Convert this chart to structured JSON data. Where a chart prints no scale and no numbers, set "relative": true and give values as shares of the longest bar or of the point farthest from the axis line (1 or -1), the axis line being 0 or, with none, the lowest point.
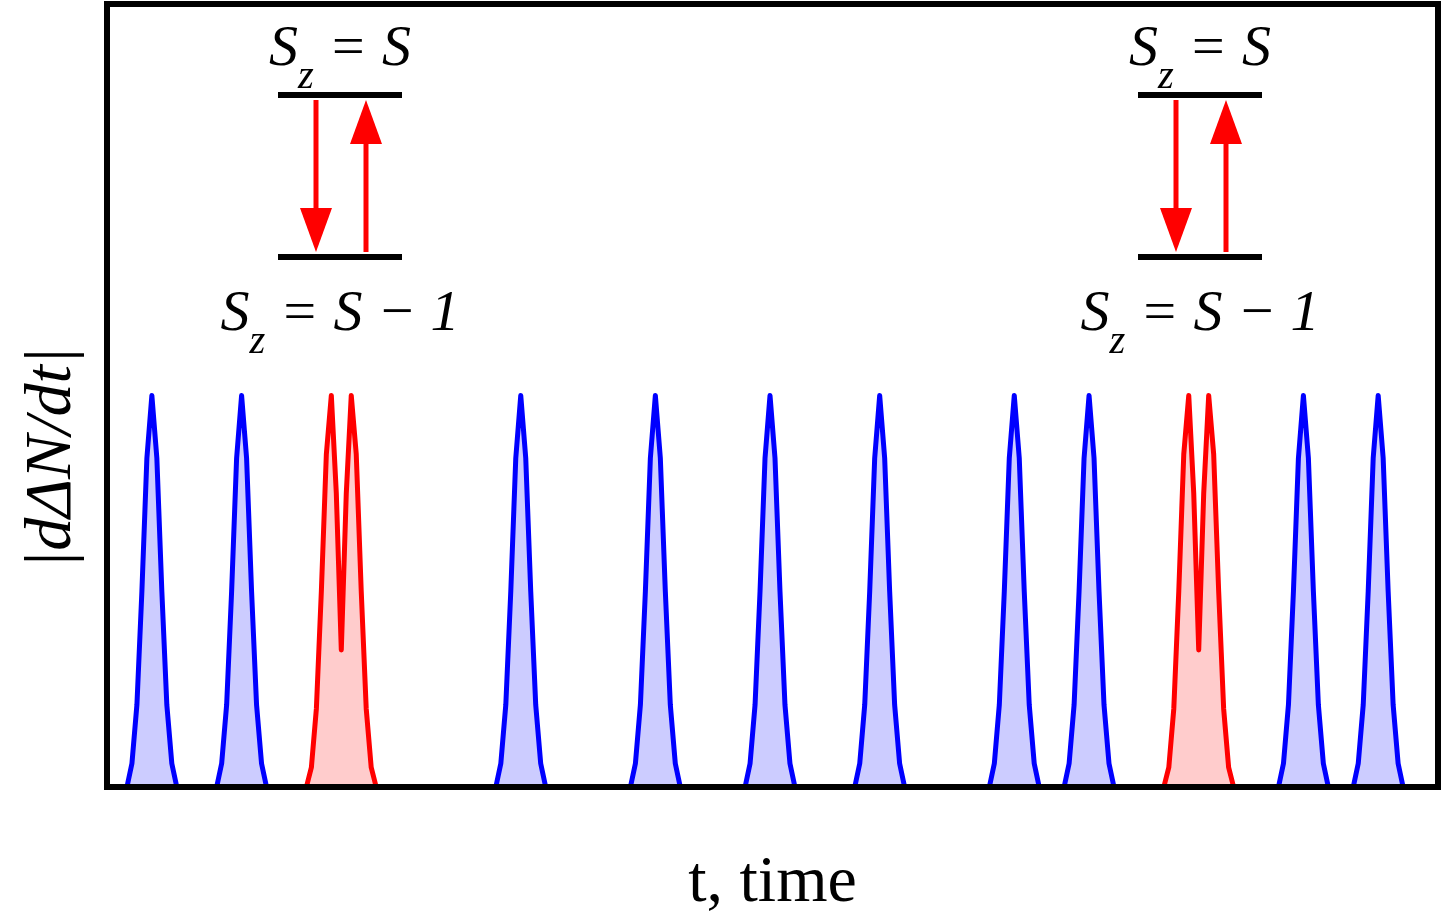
{
  "chart_data": {
    "type": "area",
    "relative": true,
    "xlabel": "t, time",
    "ylabel": "|dΔN/dt|",
    "annotations": [
      "S$_{z}$ = S",
      "S$_{z}$ = S − 1",
      "S$_{z}$ = S",
      "S$_{z}$ = S − 1"
    ],
    "categories": [
      null,
      null,
      null,
      null,
      null,
      null,
      null,
      null,
      null,
      null,
      null,
      null,
      null,
      null,
      null,
      null,
      null,
      null,
      null,
      null,
      null,
      null,
      null,
      null,
      null,
      null,
      null,
      null,
      null,
      null,
      null,
      null,
      null,
      null,
      null,
      null,
      null,
      null,
      null,
      null,
      null,
      null,
      null,
      null,
      null,
      null,
      null,
      null,
      null,
      null,
      null,
      null,
      null,
      null,
      null,
      null,
      null,
      null,
      null,
      null,
      null,
      null,
      null,
      null,
      null,
      null,
      null,
      null,
      null,
      null,
      null,
      null,
      null,
      null,
      null,
      null,
      null,
      null,
      null,
      null,
      null,
      null,
      null,
      null,
      null,
      null,
      null,
      null,
      null,
      null,
      null,
      null,
      null,
      null,
      null,
      null,
      null,
      null,
      null,
      null,
      null,
      null,
      null,
      null,
      null,
      null,
      null,
      null,
      null,
      null,
      null,
      null,
      null,
      null,
      null,
      null,
      null,
      null,
      null,
      null,
      null,
      null,
      null,
      null,
      null,
      null,
      null,
      null,
      null,
      null,
      null,
      null,
      null,
      null,
      null,
      null,
      null,
      null,
      null,
      null,
      null,
      null,
      null,
      null,
      null,
      null,
      null,
      null,
      null,
      null,
      null,
      null,
      null,
      null,
      null,
      null,
      null,
      null,
      null,
      null,
      null,
      null,
      null,
      null,
      null,
      null,
      null,
      null,
      null,
      null,
      null,
      null,
      null,
      null,
      null,
      null,
      null,
      null,
      null,
      null,
      null,
      null,
      null,
      null,
      null,
      null,
      null,
      null,
      null,
      null,
      null,
      null,
      null,
      null,
      null,
      null,
      null,
      null,
      null,
      null,
      null,
      null,
      null,
      null,
      null,
      null,
      null,
      null,
      null,
      null,
      null,
      null,
      null,
      null,
      null,
      null,
      null,
      null,
      null,
      null,
      null,
      null,
      null,
      null,
      null,
      null,
      null,
      null,
      null,
      null,
      null,
      null,
      null,
      null,
      null,
      null,
      null,
      null,
      null,
      null,
      null,
      null,
      null,
      null,
      null,
      null,
      null,
      null,
      null,
      null,
      null,
      null,
      null,
      null,
      null,
      null,
      null,
      null,
      null,
      null,
      null,
      null,
      null,
      null,
      null,
      null,
      null,
      null
    ],
    "series": [
      {
        "color": "#0000ff",
        "values": [
          0,
          0,
          0,
          0,
          0,
          0.06,
          0.21,
          0.5,
          0.84,
          1,
          0.84,
          0.5,
          0.21,
          0.06,
          0,
          0,
          0,
          0,
          0,
          0,
          0,
          0,
          0,
          0.06,
          0.21,
          0.5,
          0.84,
          1,
          0.84,
          0.5,
          0.21,
          0.06,
          0,
          0,
          0,
          0,
          0,
          0,
          0,
          0,
          0,
          0,
          0,
          0,
          0,
          0,
          0,
          0,
          0,
          0,
          0,
          0,
          0,
          0,
          0,
          0,
          0,
          0,
          0,
          0,
          0,
          0,
          0,
          0,
          0,
          0,
          0,
          0,
          0,
          0,
          0,
          0,
          0,
          0,
          0,
          0,
          0,
          0,
          0,
          0.06,
          0.21,
          0.5,
          0.84,
          1,
          0.84,
          0.5,
          0.21,
          0.06,
          0,
          0,
          0,
          0,
          0,
          0,
          0,
          0,
          0,
          0,
          0,
          0,
          0,
          0,
          0,
          0,
          0,
          0,
          0.06,
          0.21,
          0.5,
          0.84,
          1,
          0.84,
          0.5,
          0.21,
          0.06,
          0,
          0,
          0,
          0,
          0,
          0,
          0,
          0,
          0,
          0,
          0,
          0,
          0,
          0,
          0.06,
          0.21,
          0.5,
          0.84,
          1,
          0.84,
          0.5,
          0.21,
          0.06,
          0,
          0,
          0,
          0,
          0,
          0,
          0,
          0,
          0,
          0,
          0,
          0,
          0,
          0.06,
          0.21,
          0.5,
          0.84,
          1,
          0.84,
          0.5,
          0.21,
          0.06,
          0,
          0,
          0,
          0,
          0,
          0,
          0,
          0,
          0,
          0,
          0,
          0,
          0,
          0,
          0,
          0,
          0,
          0,
          0.06,
          0.21,
          0.5,
          0.84,
          1,
          0.84,
          0.5,
          0.21,
          0.06,
          0,
          0,
          0,
          0,
          0,
          0,
          0.06,
          0.21,
          0.5,
          0.84,
          1,
          0.84,
          0.5,
          0.21,
          0.06,
          0,
          0,
          0,
          0,
          0,
          0,
          0,
          0,
          0,
          0,
          0,
          0,
          0,
          0,
          0,
          0,
          0,
          0,
          0,
          0,
          0,
          0,
          0,
          0,
          0,
          0,
          0,
          0,
          0,
          0,
          0,
          0,
          0,
          0,
          0.06,
          0.21,
          0.5,
          0.84,
          1,
          0.84,
          0.5,
          0.21,
          0.06,
          0,
          0,
          0,
          0,
          0,
          0,
          0.06,
          0.21,
          0.5,
          0.84,
          1,
          0.84,
          0.5,
          0.21,
          0.06,
          0,
          0,
          0,
          0,
          0,
          0,
          0,
          0
        ]
      },
      {
        "color": "#ff0000",
        "values": [
          null,
          null,
          null,
          null,
          null,
          null,
          null,
          null,
          null,
          null,
          null,
          null,
          null,
          null,
          null,
          null,
          null,
          null,
          null,
          null,
          null,
          null,
          null,
          null,
          null,
          null,
          null,
          null,
          null,
          null,
          null,
          null,
          null,
          null,
          null,
          null,
          null,
          null,
          null,
          null,
          0,
          0.05,
          0.2,
          0.5,
          0.85,
          1,
          0.75,
          0.35,
          0.75,
          1,
          0.85,
          0.5,
          0.2,
          0.05,
          0,
          null,
          null,
          null,
          null,
          null,
          null,
          null,
          null,
          null,
          null,
          null,
          null,
          null,
          null,
          null,
          null,
          null,
          null,
          null,
          null,
          null,
          null,
          null,
          null,
          null,
          null,
          null,
          null,
          null,
          null,
          null,
          null,
          null,
          null,
          null,
          null,
          null,
          null,
          null,
          null,
          null,
          null,
          null,
          null,
          null,
          null,
          null,
          null,
          null,
          null,
          null,
          null,
          null,
          null,
          null,
          null,
          null,
          null,
          null,
          null,
          null,
          null,
          null,
          null,
          null,
          null,
          null,
          null,
          null,
          null,
          null,
          null,
          null,
          null,
          null,
          null,
          null,
          null,
          null,
          null,
          null,
          null,
          null,
          null,
          null,
          null,
          null,
          null,
          null,
          null,
          null,
          null,
          null,
          null,
          null,
          null,
          null,
          null,
          null,
          null,
          null,
          null,
          null,
          null,
          null,
          null,
          null,
          null,
          null,
          null,
          null,
          null,
          null,
          null,
          null,
          null,
          null,
          null,
          null,
          null,
          null,
          null,
          null,
          null,
          null,
          null,
          null,
          null,
          null,
          null,
          null,
          null,
          null,
          null,
          null,
          null,
          null,
          null,
          null,
          null,
          null,
          null,
          null,
          null,
          null,
          null,
          null,
          null,
          null,
          null,
          null,
          null,
          null,
          null,
          null,
          null,
          null,
          0,
          0.05,
          0.2,
          0.5,
          0.85,
          1,
          0.75,
          0.35,
          0.75,
          1,
          0.85,
          0.5,
          0.2,
          0.05,
          0,
          null,
          null,
          null,
          null,
          null,
          null,
          null,
          null,
          null,
          null,
          null,
          null,
          null,
          null,
          null,
          null,
          null,
          null,
          null,
          null,
          null,
          null,
          null,
          null,
          null,
          null,
          null,
          null,
          null,
          null,
          null,
          null,
          null,
          null,
          null,
          null,
          null,
          null,
          null,
          null,
          null
        ]
      }
    ]
  }
}
